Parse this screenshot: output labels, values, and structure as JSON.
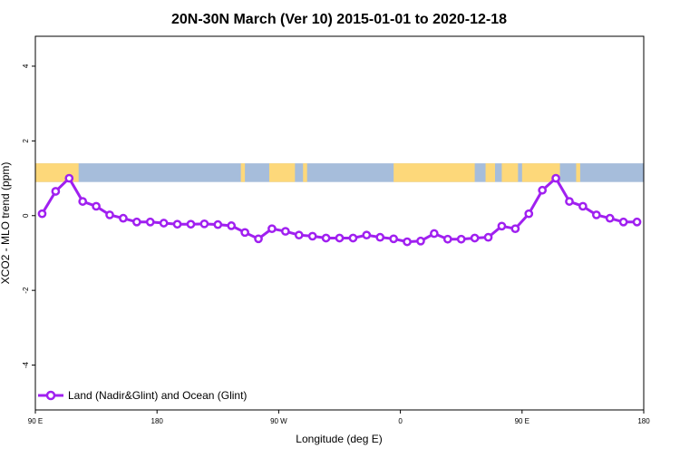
{
  "chart_data": {
    "type": "line",
    "title": "20N-30N March (Ver 10)   2015-01-01 to 2020-12-18",
    "xlabel": "Longitude (deg E)",
    "ylabel": "XCO2 - MLO trend (ppm)",
    "x_ticks": [
      {
        "value": 90,
        "label": "90 E"
      },
      {
        "value": 180,
        "label": "180"
      },
      {
        "value": 270,
        "label": "90 W"
      },
      {
        "value": 360,
        "label": "0"
      },
      {
        "value": 450,
        "label": "90 E"
      },
      {
        "value": 540,
        "label": "180"
      }
    ],
    "y_ticks": [
      {
        "value": 4,
        "label": "4"
      },
      {
        "value": 2,
        "label": "2"
      },
      {
        "value": 0,
        "label": "0"
      },
      {
        "value": -2,
        "label": "-2"
      },
      {
        "value": -4,
        "label": "-4"
      }
    ],
    "xlim": [
      90,
      540
    ],
    "ylim": [
      -5.2,
      4.8
    ],
    "land_ocean_band": {
      "ymin": 0.9,
      "ymax": 1.4,
      "ocean_color": "#a6bddb",
      "land_color": "#fdd87a"
    },
    "grid": false,
    "legend_position": "bottom-left",
    "series": [
      {
        "name": "Land (Nadir&Glint) and Ocean (Glint)",
        "color": "#a020f0",
        "x": [
          95,
          105,
          115,
          125,
          135,
          145,
          155,
          165,
          175,
          185,
          195,
          205,
          215,
          225,
          235,
          245,
          255,
          265,
          275,
          285,
          295,
          305,
          315,
          325,
          335,
          345,
          355,
          365,
          375,
          385,
          395,
          405,
          415,
          425,
          435,
          445,
          455,
          465,
          475,
          485,
          495,
          505,
          515,
          525,
          535
        ],
        "y": [
          0.05,
          0.65,
          1.0,
          0.38,
          0.25,
          0.02,
          -0.07,
          -0.17,
          -0.17,
          -0.2,
          -0.23,
          -0.23,
          -0.22,
          -0.24,
          -0.27,
          -0.45,
          -0.62,
          -0.35,
          -0.42,
          -0.52,
          -0.55,
          -0.6,
          -0.6,
          -0.6,
          -0.52,
          -0.58,
          -0.62,
          -0.7,
          -0.68,
          -0.48,
          -0.63,
          -0.63,
          -0.6,
          -0.58,
          -0.28,
          -0.35,
          0.05,
          0.68,
          1.0,
          0.38,
          0.25,
          0.02,
          -0.07,
          -0.17,
          -0.17
        ]
      }
    ]
  }
}
